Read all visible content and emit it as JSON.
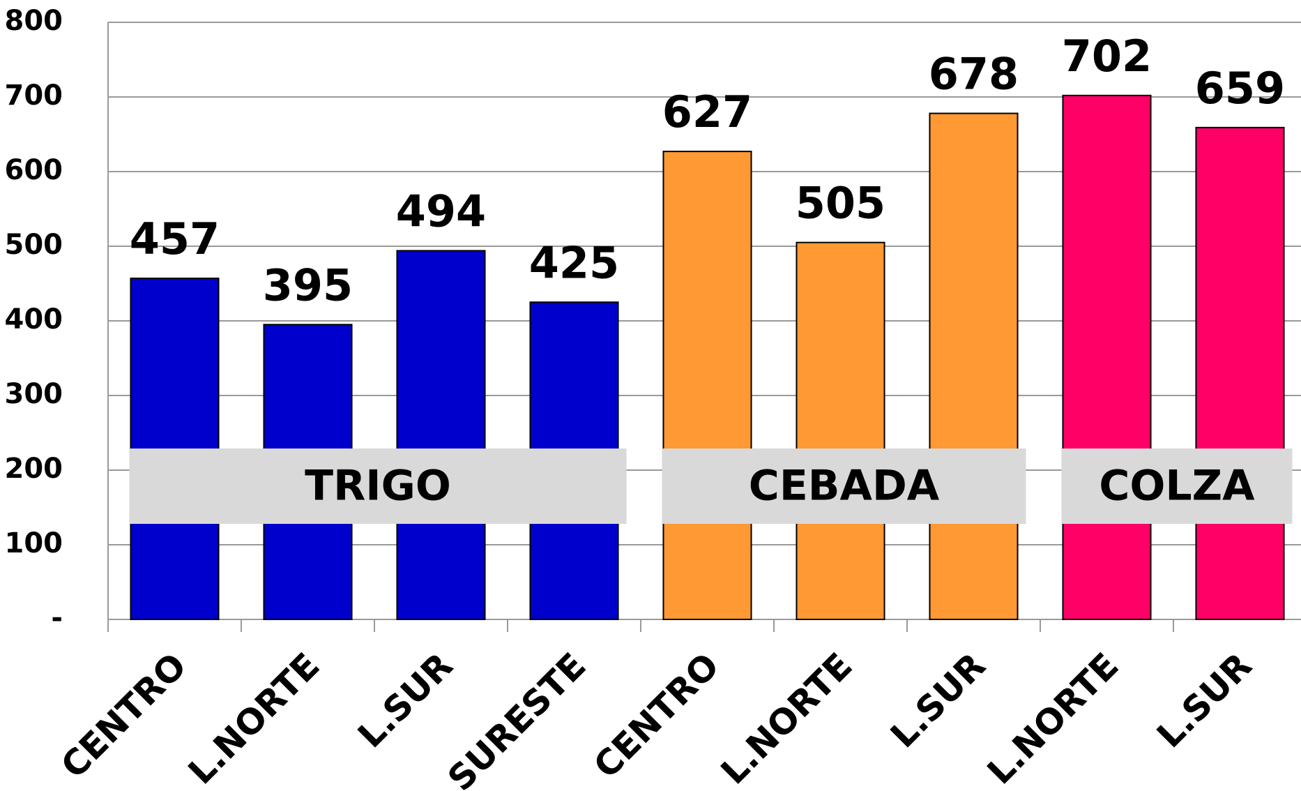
{
  "chart_data": {
    "type": "bar",
    "categories": [
      "CENTRO",
      "L.NORTE",
      "L.SUR",
      "SURESTE",
      "CENTRO",
      "L.NORTE",
      "L.SUR",
      "L.NORTE",
      "L.SUR"
    ],
    "series": [
      {
        "name": "TRIGO",
        "color": "#0000cc",
        "values": [
          457,
          395,
          494,
          425,
          null,
          null,
          null,
          null,
          null
        ]
      },
      {
        "name": "CEBADA",
        "color": "#ff9933",
        "values": [
          null,
          null,
          null,
          null,
          627,
          505,
          678,
          null,
          null
        ]
      },
      {
        "name": "COLZA",
        "color": "#ff0066",
        "values": [
          null,
          null,
          null,
          null,
          null,
          null,
          null,
          702,
          659
        ]
      }
    ],
    "ylim": [
      0,
      800
    ],
    "yticks": [
      {
        "value": 0,
        "label": "-"
      },
      100,
      200,
      300,
      400,
      500,
      600,
      700,
      800
    ],
    "grid": true
  }
}
